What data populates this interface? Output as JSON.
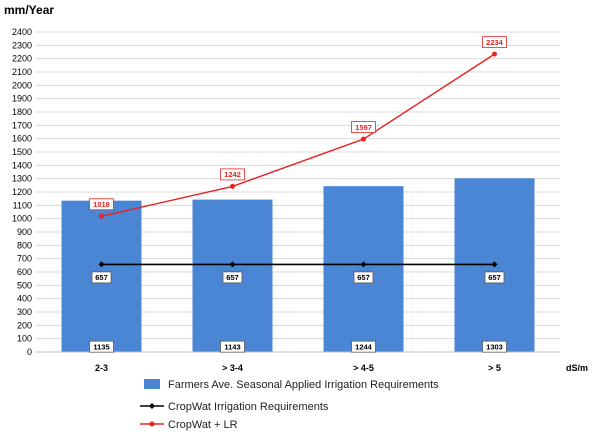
{
  "chart_data": {
    "type": "bar",
    "title": "",
    "ylabel": "mm/Year",
    "xlabel": "dS/m",
    "ylim": [
      0,
      2400
    ],
    "yticks": [
      0,
      100,
      200,
      300,
      400,
      500,
      600,
      700,
      800,
      900,
      1000,
      1100,
      1200,
      1300,
      1400,
      1500,
      1600,
      1700,
      1800,
      1900,
      2000,
      2100,
      2200,
      2300,
      2400
    ],
    "grid": true,
    "legend_position": "bottom",
    "categories": [
      "2-3",
      "> 3-4",
      "> 4-5",
      "> 5"
    ],
    "series": [
      {
        "name": "Farmers Ave. Seasonal Applied Irrigation Requirements",
        "kind": "bar",
        "color": "#4a86d4",
        "values": [
          1135,
          1143,
          1244,
          1303
        ],
        "labels": [
          "1135",
          "1143",
          "1244",
          "1303"
        ]
      },
      {
        "name": "CropWat Irrigation Requirements",
        "kind": "line",
        "color": "#000000",
        "values": [
          657,
          657,
          657,
          657
        ],
        "labels": [
          "657",
          "657",
          "657",
          "657"
        ]
      },
      {
        "name": "CropWat + LR",
        "kind": "line",
        "color": "#e8231f",
        "values": [
          1018,
          1242,
          1597,
          2234
        ],
        "labels": [
          "1018",
          "1242",
          "1597",
          "2234"
        ]
      }
    ]
  }
}
